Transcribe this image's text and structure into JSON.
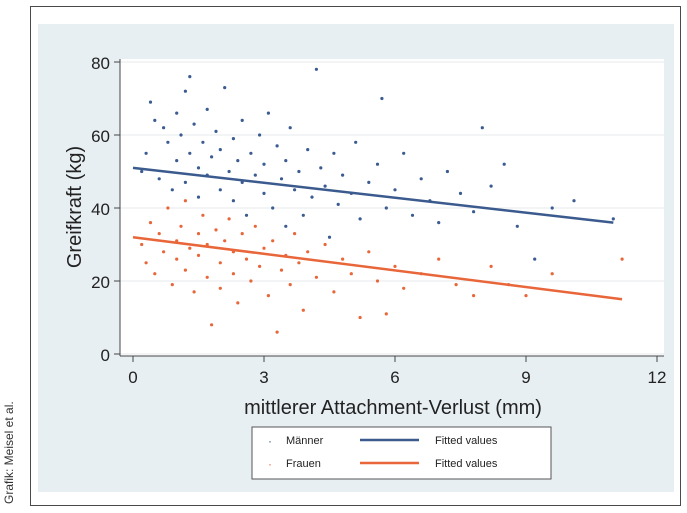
{
  "credit": "Grafik: Meisel et al.",
  "chart_data": {
    "type": "scatter",
    "title": "",
    "xlabel": "mittlerer Attachment-Verlust (mm)",
    "ylabel": "Greifkraft (kg)",
    "xlim": [
      0,
      12
    ],
    "ylim": [
      0,
      80
    ],
    "xticks": [
      0,
      3,
      6,
      9,
      12
    ],
    "yticks": [
      0,
      20,
      40,
      60,
      80
    ],
    "grid": true,
    "legend_position": "bottom",
    "series": [
      {
        "name": "Männer",
        "kind": "scatter",
        "color": "#3b5b91",
        "x_range": [
          0.2,
          11
        ],
        "fit": {
          "name": "Fitted values",
          "color": "#3b5a8e",
          "x": [
            0,
            11
          ],
          "y": [
            51,
            36
          ]
        },
        "points": [
          [
            0.2,
            50
          ],
          [
            0.3,
            55
          ],
          [
            0.4,
            69
          ],
          [
            0.5,
            64
          ],
          [
            0.6,
            48
          ],
          [
            0.7,
            62
          ],
          [
            0.8,
            58
          ],
          [
            0.9,
            45
          ],
          [
            1.0,
            53
          ],
          [
            1.0,
            66
          ],
          [
            1.1,
            60
          ],
          [
            1.2,
            72
          ],
          [
            1.2,
            47
          ],
          [
            1.3,
            55
          ],
          [
            1.3,
            76
          ],
          [
            1.4,
            63
          ],
          [
            1.5,
            51
          ],
          [
            1.5,
            43
          ],
          [
            1.6,
            58
          ],
          [
            1.7,
            67
          ],
          [
            1.7,
            49
          ],
          [
            1.8,
            54
          ],
          [
            1.9,
            61
          ],
          [
            2.0,
            45
          ],
          [
            2.0,
            56
          ],
          [
            2.1,
            73
          ],
          [
            2.2,
            50
          ],
          [
            2.3,
            42
          ],
          [
            2.3,
            59
          ],
          [
            2.4,
            53
          ],
          [
            2.5,
            64
          ],
          [
            2.5,
            47
          ],
          [
            2.6,
            38
          ],
          [
            2.7,
            55
          ],
          [
            2.8,
            49
          ],
          [
            2.9,
            60
          ],
          [
            3.0,
            44
          ],
          [
            3.0,
            52
          ],
          [
            3.1,
            66
          ],
          [
            3.2,
            40
          ],
          [
            3.3,
            57
          ],
          [
            3.4,
            48
          ],
          [
            3.5,
            35
          ],
          [
            3.5,
            53
          ],
          [
            3.6,
            62
          ],
          [
            3.7,
            45
          ],
          [
            3.8,
            50
          ],
          [
            3.9,
            38
          ],
          [
            4.0,
            56
          ],
          [
            4.1,
            43
          ],
          [
            4.2,
            78
          ],
          [
            4.3,
            51
          ],
          [
            4.4,
            46
          ],
          [
            4.5,
            32
          ],
          [
            4.6,
            55
          ],
          [
            4.7,
            41
          ],
          [
            4.8,
            49
          ],
          [
            5.0,
            44
          ],
          [
            5.1,
            58
          ],
          [
            5.2,
            37
          ],
          [
            5.4,
            47
          ],
          [
            5.6,
            52
          ],
          [
            5.7,
            70
          ],
          [
            5.8,
            40
          ],
          [
            6.0,
            45
          ],
          [
            6.2,
            55
          ],
          [
            6.4,
            38
          ],
          [
            6.6,
            48
          ],
          [
            6.8,
            42
          ],
          [
            7.0,
            36
          ],
          [
            7.2,
            50
          ],
          [
            7.5,
            44
          ],
          [
            7.8,
            39
          ],
          [
            8.0,
            62
          ],
          [
            8.2,
            46
          ],
          [
            8.5,
            52
          ],
          [
            8.8,
            35
          ],
          [
            9.2,
            26
          ],
          [
            9.6,
            40
          ],
          [
            10.1,
            42
          ],
          [
            11.0,
            37
          ]
        ]
      },
      {
        "name": "Frauen",
        "kind": "scatter",
        "color": "#e8673a",
        "x_range": [
          0.2,
          11.2
        ],
        "fit": {
          "name": "Fitted values",
          "color": "#e8663a",
          "x": [
            0,
            11.2
          ],
          "y": [
            32,
            15
          ]
        },
        "points": [
          [
            0.2,
            30
          ],
          [
            0.3,
            25
          ],
          [
            0.4,
            36
          ],
          [
            0.5,
            22
          ],
          [
            0.6,
            33
          ],
          [
            0.7,
            28
          ],
          [
            0.8,
            40
          ],
          [
            0.9,
            19
          ],
          [
            1.0,
            31
          ],
          [
            1.0,
            26
          ],
          [
            1.1,
            35
          ],
          [
            1.2,
            23
          ],
          [
            1.2,
            42
          ],
          [
            1.3,
            29
          ],
          [
            1.4,
            17
          ],
          [
            1.5,
            33
          ],
          [
            1.5,
            27
          ],
          [
            1.6,
            38
          ],
          [
            1.7,
            21
          ],
          [
            1.7,
            30
          ],
          [
            1.8,
            8
          ],
          [
            1.9,
            34
          ],
          [
            2.0,
            25
          ],
          [
            2.0,
            18
          ],
          [
            2.1,
            31
          ],
          [
            2.2,
            37
          ],
          [
            2.3,
            22
          ],
          [
            2.3,
            28
          ],
          [
            2.4,
            14
          ],
          [
            2.5,
            33
          ],
          [
            2.6,
            26
          ],
          [
            2.7,
            20
          ],
          [
            2.8,
            35
          ],
          [
            2.9,
            24
          ],
          [
            3.0,
            29
          ],
          [
            3.1,
            16
          ],
          [
            3.2,
            31
          ],
          [
            3.3,
            6
          ],
          [
            3.4,
            23
          ],
          [
            3.5,
            27
          ],
          [
            3.6,
            19
          ],
          [
            3.7,
            33
          ],
          [
            3.8,
            25
          ],
          [
            3.9,
            12
          ],
          [
            4.0,
            28
          ],
          [
            4.2,
            21
          ],
          [
            4.4,
            30
          ],
          [
            4.6,
            17
          ],
          [
            4.8,
            26
          ],
          [
            5.0,
            22
          ],
          [
            5.2,
            10
          ],
          [
            5.4,
            28
          ],
          [
            5.6,
            20
          ],
          [
            5.8,
            11
          ],
          [
            6.0,
            24
          ],
          [
            6.2,
            18
          ],
          [
            6.6,
            22
          ],
          [
            7.0,
            26
          ],
          [
            7.4,
            19
          ],
          [
            7.8,
            16
          ],
          [
            8.2,
            24
          ],
          [
            8.6,
            19
          ],
          [
            9.0,
            16
          ],
          [
            9.6,
            22
          ],
          [
            11.2,
            26
          ]
        ]
      }
    ]
  }
}
